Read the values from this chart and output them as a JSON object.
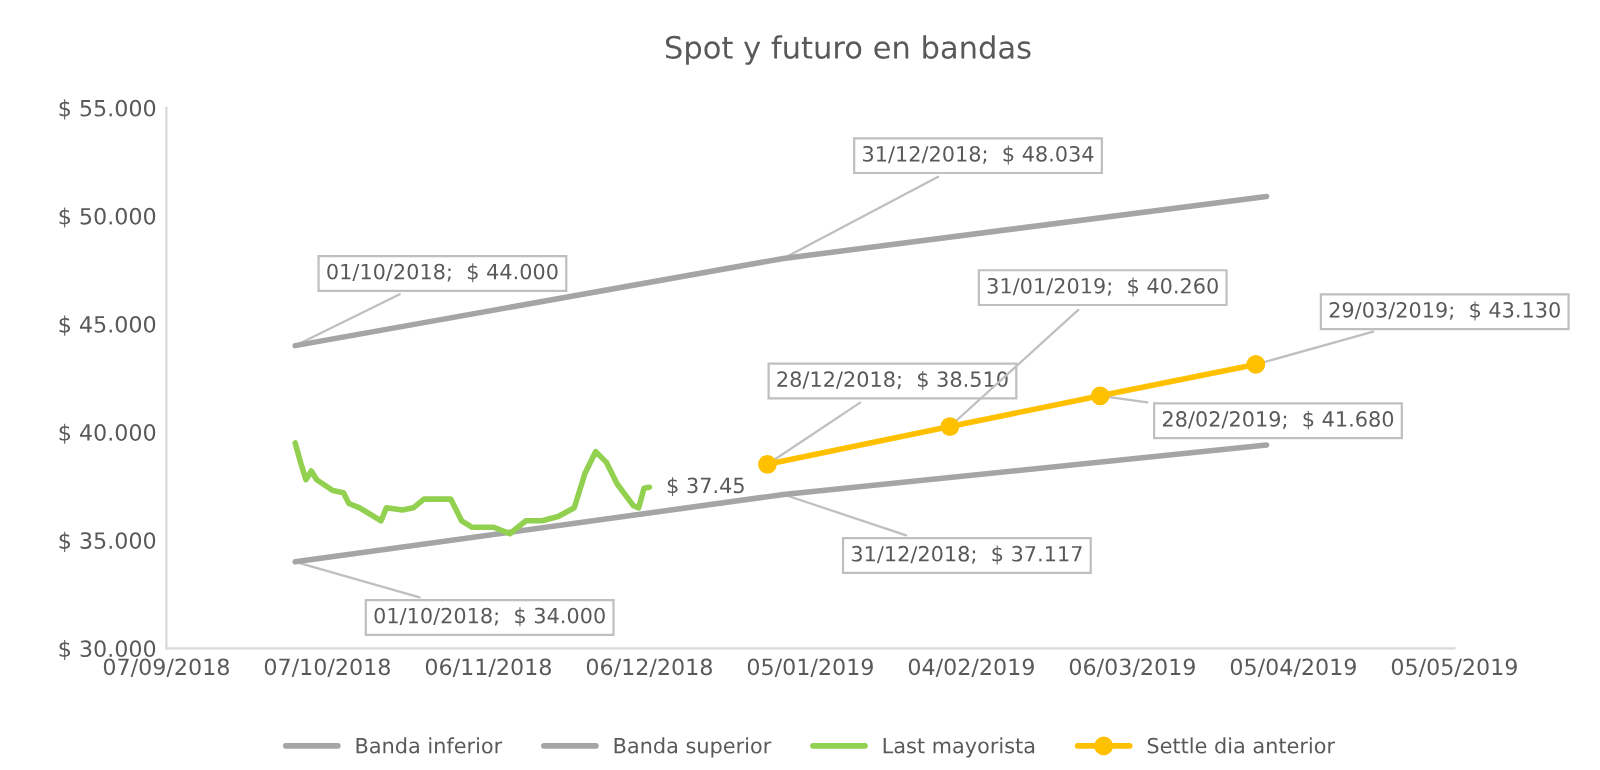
{
  "chart_data": {
    "type": "line",
    "title": "Spot y futuro en bandas",
    "xlim": [
      "2018-09-07",
      "2019-05-05"
    ],
    "xticks": [
      {
        "value": "2018-09-07",
        "label": "07/09/2018"
      },
      {
        "value": "2018-10-07",
        "label": "07/10/2018"
      },
      {
        "value": "2018-11-06",
        "label": "06/11/2018"
      },
      {
        "value": "2018-12-06",
        "label": "06/12/2018"
      },
      {
        "value": "2019-01-05",
        "label": "05/01/2019"
      },
      {
        "value": "2019-02-04",
        "label": "04/02/2019"
      },
      {
        "value": "2019-03-06",
        "label": "06/03/2019"
      },
      {
        "value": "2019-04-05",
        "label": "05/04/2019"
      },
      {
        "value": "2019-05-05",
        "label": "05/05/2019"
      }
    ],
    "ylim": [
      30,
      55
    ],
    "yticks": [
      {
        "value": 30,
        "label": "$ 30.000"
      },
      {
        "value": 35,
        "label": "$ 35.000"
      },
      {
        "value": 40,
        "label": "$ 40.000"
      },
      {
        "value": 45,
        "label": "$ 45.000"
      },
      {
        "value": 50,
        "label": "$ 50.000"
      },
      {
        "value": 55,
        "label": "$ 55.000"
      }
    ],
    "grid": false,
    "legend": "bottom",
    "series": [
      {
        "name": "Banda inferior",
        "color": "#a5a5a5",
        "marker": "none",
        "x": [
          "2018-10-01",
          "2018-12-31",
          "2019-03-31"
        ],
        "values": [
          34.0,
          37.117,
          39.4
        ]
      },
      {
        "name": "Banda superior",
        "color": "#a5a5a5",
        "marker": "none",
        "x": [
          "2018-10-01",
          "2018-12-31",
          "2019-03-31"
        ],
        "values": [
          44.0,
          48.034,
          50.9
        ]
      },
      {
        "name": "Last mayorista",
        "color": "#92d050",
        "marker": "none",
        "x": [
          "2018-10-01",
          "2018-10-02",
          "2018-10-03",
          "2018-10-04",
          "2018-10-05",
          "2018-10-08",
          "2018-10-10",
          "2018-10-11",
          "2018-10-13",
          "2018-10-17",
          "2018-10-18",
          "2018-10-21",
          "2018-10-23",
          "2018-10-25",
          "2018-10-27",
          "2018-10-30",
          "2018-11-01",
          "2018-11-03",
          "2018-11-07",
          "2018-11-10",
          "2018-11-13",
          "2018-11-16",
          "2018-11-19",
          "2018-11-22",
          "2018-11-24",
          "2018-11-26",
          "2018-11-28",
          "2018-11-30",
          "2018-12-03",
          "2018-12-04",
          "2018-12-05",
          "2018-12-06"
        ],
        "values": [
          39.5,
          38.6,
          37.8,
          38.2,
          37.8,
          37.3,
          37.2,
          36.7,
          36.5,
          35.9,
          36.5,
          36.4,
          36.5,
          36.9,
          36.9,
          36.9,
          35.9,
          35.6,
          35.6,
          35.3,
          35.9,
          35.9,
          36.1,
          36.5,
          38.1,
          39.1,
          38.6,
          37.6,
          36.6,
          36.5,
          37.4,
          37.45
        ]
      },
      {
        "name": "Settle dia anterior",
        "color": "#ffc000",
        "marker": "circle",
        "x": [
          "2018-12-28",
          "2019-01-31",
          "2019-02-28",
          "2019-03-29"
        ],
        "values": [
          38.51,
          40.26,
          41.68,
          43.13
        ]
      }
    ],
    "annotations": [
      {
        "text": "01/10/2018;  $ 44.000",
        "x": "2018-10-01",
        "y": 44.0
      },
      {
        "text": "31/12/2018;  $ 48.034",
        "x": "2018-12-31",
        "y": 48.034
      },
      {
        "text": "01/10/2018;  $ 34.000",
        "x": "2018-10-01",
        "y": 34.0
      },
      {
        "text": "31/12/2018;  $ 37.117",
        "x": "2018-12-31",
        "y": 37.117
      },
      {
        "text": "28/12/2018;  $ 38.510",
        "x": "2018-12-28",
        "y": 38.51
      },
      {
        "text": "31/01/2019;  $ 40.260",
        "x": "2019-01-31",
        "y": 40.26
      },
      {
        "text": "28/02/2019;  $ 41.680",
        "x": "2019-02-28",
        "y": 41.68
      },
      {
        "text": "29/03/2019;  $ 43.130",
        "x": "2019-03-29",
        "y": 43.13
      },
      {
        "text": "$ 37.45",
        "x": "2018-12-06",
        "y": 37.45
      }
    ]
  }
}
